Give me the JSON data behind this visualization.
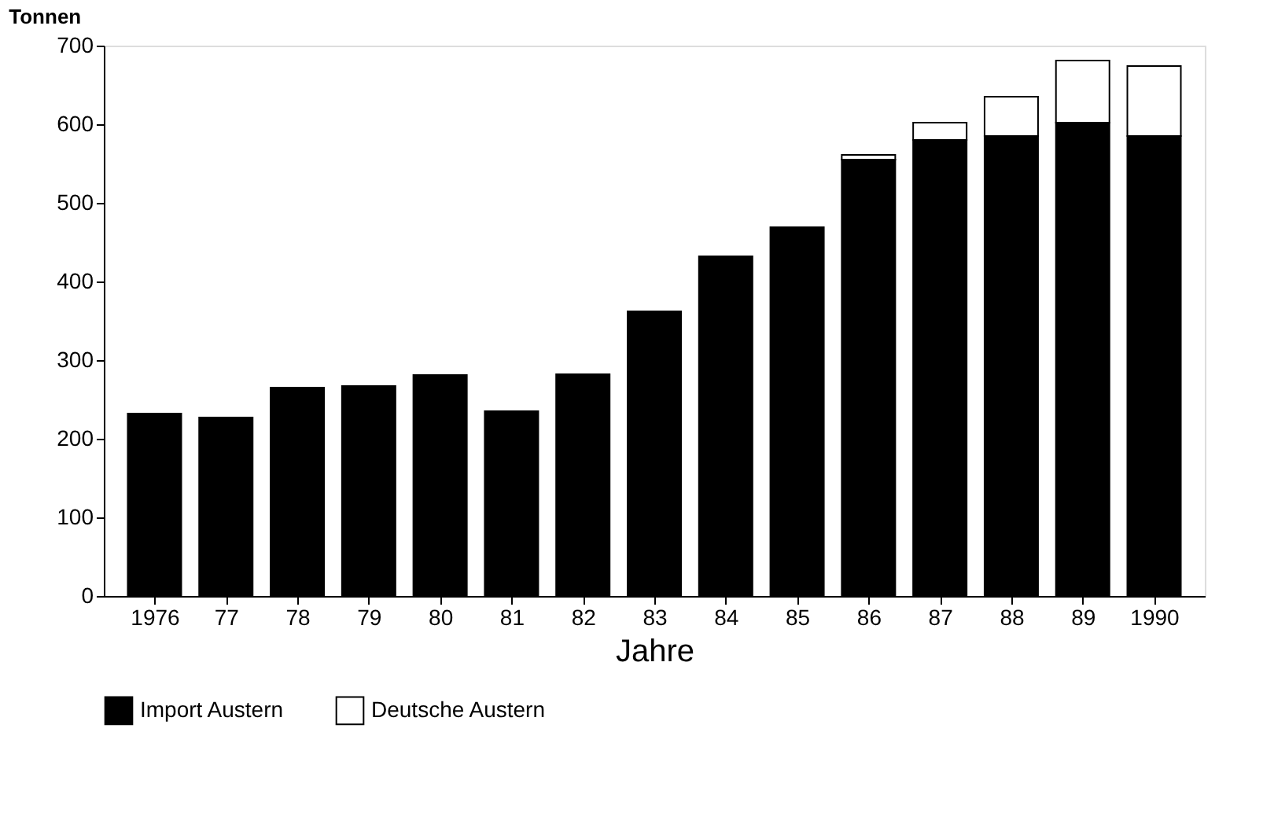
{
  "chart_data": {
    "type": "bar",
    "stacked": true,
    "ylabel": "Tonnen",
    "xlabel": "Jahre",
    "categories": [
      "1976",
      "77",
      "78",
      "79",
      "80",
      "81",
      "82",
      "83",
      "84",
      "85",
      "86",
      "87",
      "88",
      "89",
      "1990"
    ],
    "series": [
      {
        "name": "Import Austern",
        "color": "#000000",
        "values": [
          232,
          227,
          265,
          267,
          281,
          235,
          282,
          362,
          432,
          469,
          555,
          580,
          585,
          602,
          585
        ]
      },
      {
        "name": "Deutsche Austern",
        "color": "#ffffff",
        "values": [
          null,
          null,
          null,
          null,
          null,
          null,
          null,
          null,
          null,
          null,
          6,
          22,
          50,
          79,
          89
        ]
      }
    ],
    "ylim": [
      0,
      700
    ],
    "yticks": [
      0,
      100,
      200,
      300,
      400,
      500,
      600,
      700
    ],
    "grid": false,
    "legend": "bottom"
  }
}
